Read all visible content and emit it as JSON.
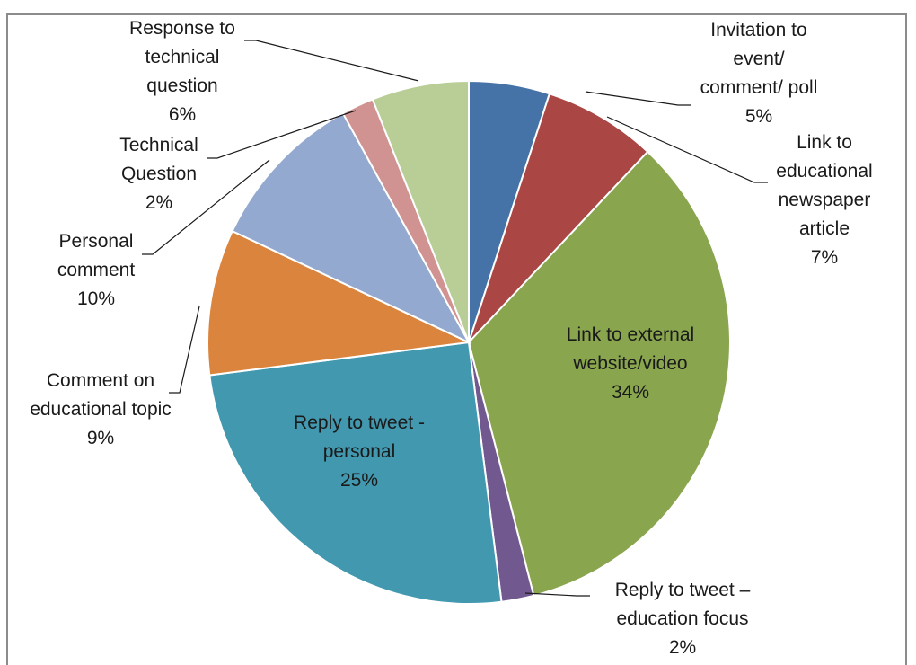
{
  "chart_data": {
    "type": "pie",
    "start_angle_deg": 0,
    "direction": "clockwise",
    "slices": [
      {
        "label_lines": [
          "Invitation to",
          "event/",
          "comment/ poll",
          "5%"
        ],
        "value": 5,
        "color": "#4572a7"
      },
      {
        "label_lines": [
          "Link to",
          "educational",
          "newspaper",
          "article",
          "7%"
        ],
        "value": 7,
        "color": "#aa4643"
      },
      {
        "label_lines": [
          "Link to external",
          "website/video",
          "34%"
        ],
        "value": 34,
        "color": "#89a54e"
      },
      {
        "label_lines": [
          "Reply to tweet –",
          "education focus",
          "2%"
        ],
        "value": 2,
        "color": "#71588f"
      },
      {
        "label_lines": [
          "Reply to tweet -",
          "personal",
          "25%"
        ],
        "value": 25,
        "color": "#4198af"
      },
      {
        "label_lines": [
          "Comment on",
          "educational topic",
          "9%"
        ],
        "value": 9,
        "color": "#db843d"
      },
      {
        "label_lines": [
          "Personal",
          "comment",
          "10%"
        ],
        "value": 10,
        "color": "#93a9cf"
      },
      {
        "label_lines": [
          "Technical",
          "Question",
          "2%"
        ],
        "value": 2,
        "color": "#d19392"
      },
      {
        "label_lines": [
          "Response to",
          "technical",
          "question",
          "6%"
        ],
        "value": 6,
        "color": "#b9cd96"
      }
    ]
  }
}
